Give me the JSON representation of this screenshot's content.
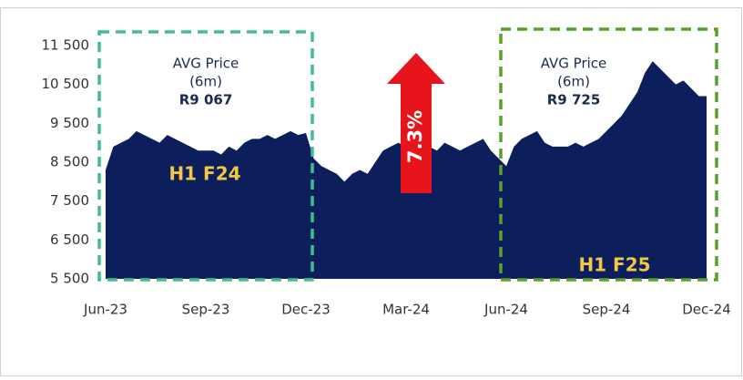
{
  "chart_data": {
    "type": "area",
    "categories": [
      "Jun-23",
      null,
      null,
      null,
      null,
      null,
      null,
      null,
      null,
      null,
      null,
      null,
      null,
      "Sep-23",
      null,
      null,
      null,
      null,
      null,
      null,
      null,
      null,
      null,
      null,
      null,
      null,
      "Dec-23",
      null,
      null,
      null,
      null,
      null,
      null,
      null,
      null,
      null,
      null,
      null,
      null,
      "Mar-24",
      null,
      null,
      null,
      null,
      null,
      null,
      null,
      null,
      null,
      null,
      null,
      null,
      "Jun-24",
      null,
      null,
      null,
      null,
      null,
      null,
      null,
      null,
      null,
      null,
      null,
      null,
      "Sep-24",
      null,
      null,
      null,
      null,
      null,
      null,
      null,
      null,
      null,
      null,
      null,
      null,
      "Dec-24"
    ],
    "series": [
      {
        "color": "#0c1f5c",
        "values": [
          8300,
          8900,
          9000,
          9100,
          9300,
          9200,
          9100,
          9000,
          9200,
          9100,
          9000,
          8900,
          8800,
          8800,
          8800,
          8700,
          8900,
          8800,
          9000,
          9100,
          9100,
          9200,
          9100,
          9200,
          9300,
          9200,
          9250,
          8600,
          8400,
          8300,
          8200,
          8000,
          8200,
          8300,
          8200,
          8500,
          8800,
          8900,
          9000,
          8900,
          8800,
          8900,
          8900,
          8800,
          9000,
          8900,
          8800,
          8900,
          9000,
          9100,
          8800,
          8600,
          8400,
          8900,
          9100,
          9200,
          9300,
          9000,
          8900,
          8900,
          8900,
          9000,
          8900,
          9000,
          9100,
          9300,
          9500,
          9700,
          10000,
          10300,
          10800,
          11100,
          10900,
          10700,
          10500,
          10600,
          10400,
          10200,
          10200
        ]
      }
    ],
    "ylim": [
      5500,
      11500
    ],
    "yticks": [
      {
        "value": 5500,
        "label": "5 500"
      },
      {
        "value": 6500,
        "label": "6 500"
      },
      {
        "value": 7500,
        "label": "7 500"
      },
      {
        "value": 8500,
        "label": "8 500"
      },
      {
        "value": 9500,
        "label": "9 500"
      },
      {
        "value": 10500,
        "label": "10 500"
      },
      {
        "value": 11500,
        "label": "11 500"
      }
    ],
    "periods": [
      {
        "label": "H1 F24",
        "avg_title": "AVG Price",
        "avg_window": "(6m)",
        "avg_value": "R9 067",
        "color": "#3dbf8f"
      },
      {
        "label": "H1 F25",
        "avg_title": "AVG Price",
        "avg_window": "(6m)",
        "avg_value": "R9 725",
        "color": "#5aa02c"
      }
    ],
    "change_label": "7.3%",
    "change_color": "#e8141b"
  }
}
